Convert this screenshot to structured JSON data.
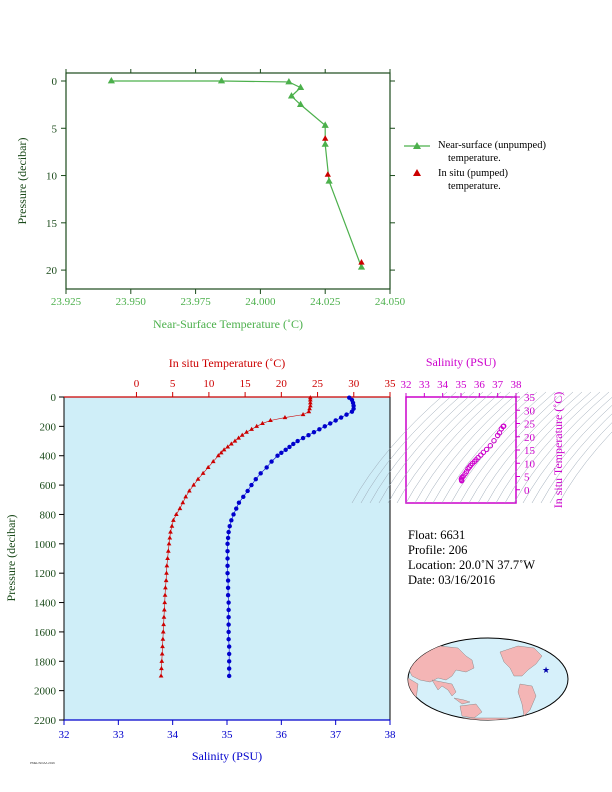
{
  "colors": {
    "green": "#4cb04c",
    "red": "#cc0000",
    "blue": "#0000cc",
    "magenta": "#cc00cc",
    "axis_dark": "#1a4a1a",
    "panel_bg": "#cfeef8",
    "land": "#f4b5b5",
    "ocean": "#d6f0fa"
  },
  "chart_data": [
    {
      "type": "line",
      "id": "near-surface",
      "xlabel": "Near-Surface Temperature (˚C)",
      "ylabel": "Pressure (decibar)",
      "xlim": [
        23.925,
        24.05
      ],
      "ylim": [
        0,
        22
      ],
      "y_inverted": true,
      "x_ticks": [
        "23.925",
        "23.950",
        "23.975",
        "24.000",
        "24.025",
        "24.050"
      ],
      "y_ticks": [
        "0",
        "5",
        "10",
        "15",
        "20"
      ],
      "series": [
        {
          "name": "Near-surface (unpumped) temperature.",
          "marker": "triangle",
          "color": "green",
          "x": [
            23.9425,
            23.985,
            24.011,
            24.0155,
            24.012,
            24.0155,
            24.025,
            24.025,
            24.0265,
            24.039
          ],
          "y": [
            0.0,
            0.0,
            0.1,
            0.7,
            1.6,
            2.5,
            4.7,
            6.7,
            10.6,
            19.7
          ]
        },
        {
          "name": "In situ (pumped) temperature.",
          "marker": "triangle",
          "color": "red",
          "x": [
            24.025,
            24.026,
            24.039
          ],
          "y": [
            6.1,
            9.9,
            19.2
          ]
        }
      ],
      "legend": [
        {
          "line1": "Near-surface (unpumped)",
          "line2": "temperature."
        },
        {
          "line1": "In situ (pumped)",
          "line2": "temperature."
        }
      ]
    },
    {
      "type": "line",
      "id": "profile",
      "top_xlabel": "In situ Temperature (˚C)",
      "bottom_xlabel": "Salinity (PSU)",
      "ylabel": "Pressure (decibar)",
      "temp_lim": [
        -10,
        35
      ],
      "sal_lim": [
        32,
        38
      ],
      "ylim": [
        0,
        2200
      ],
      "y_inverted": true,
      "temp_ticks": [
        "0",
        "5",
        "10",
        "15",
        "20",
        "25",
        "30",
        "35"
      ],
      "sal_ticks": [
        "32",
        "33",
        "34",
        "35",
        "36",
        "37",
        "38"
      ],
      "y_ticks": [
        "0",
        "200",
        "400",
        "600",
        "800",
        "1000",
        "1200",
        "1400",
        "1600",
        "1800",
        "2000",
        "2200"
      ],
      "temperature": {
        "color": "red",
        "p": [
          5,
          20,
          40,
          60,
          80,
          100,
          120,
          140,
          160,
          180,
          200,
          220,
          240,
          260,
          280,
          300,
          320,
          340,
          360,
          380,
          400,
          440,
          480,
          520,
          560,
          600,
          640,
          680,
          720,
          760,
          800,
          840,
          880,
          920,
          960,
          1000,
          1050,
          1100,
          1150,
          1200,
          1250,
          1300,
          1350,
          1400,
          1450,
          1500,
          1550,
          1600,
          1650,
          1700,
          1750,
          1800,
          1850,
          1900
        ],
        "v": [
          24.0,
          24.0,
          24.0,
          24.0,
          23.9,
          23.8,
          23.0,
          20.5,
          18.5,
          17.4,
          16.6,
          15.9,
          15.2,
          14.6,
          14.1,
          13.6,
          13.1,
          12.6,
          12.1,
          11.7,
          11.3,
          10.6,
          9.9,
          9.2,
          8.5,
          7.9,
          7.3,
          6.8,
          6.4,
          6.0,
          5.5,
          5.1,
          4.9,
          4.7,
          4.6,
          4.5,
          4.4,
          4.3,
          4.2,
          4.15,
          4.1,
          4.0,
          3.95,
          3.9,
          3.85,
          3.8,
          3.75,
          3.7,
          3.65,
          3.6,
          3.55,
          3.5,
          3.45,
          3.4
        ]
      },
      "salinity": {
        "color": "blue",
        "p": [
          5,
          20,
          40,
          60,
          80,
          100,
          120,
          140,
          160,
          180,
          200,
          220,
          240,
          260,
          280,
          300,
          320,
          340,
          360,
          380,
          400,
          440,
          480,
          520,
          560,
          600,
          640,
          680,
          720,
          760,
          800,
          840,
          880,
          920,
          960,
          1000,
          1050,
          1100,
          1150,
          1200,
          1250,
          1300,
          1350,
          1400,
          1450,
          1500,
          1550,
          1600,
          1650,
          1700,
          1750,
          1800,
          1850,
          1900
        ],
        "v": [
          37.25,
          37.3,
          37.32,
          37.33,
          37.33,
          37.3,
          37.2,
          37.1,
          37.0,
          36.9,
          36.8,
          36.7,
          36.6,
          36.5,
          36.4,
          36.3,
          36.22,
          36.15,
          36.08,
          36.0,
          35.93,
          35.82,
          35.73,
          35.62,
          35.53,
          35.45,
          35.38,
          35.3,
          35.22,
          35.17,
          35.12,
          35.08,
          35.05,
          35.03,
          35.02,
          35.01,
          35.01,
          35.01,
          35.01,
          35.01,
          35.02,
          35.02,
          35.02,
          35.03,
          35.03,
          35.03,
          35.03,
          35.03,
          35.03,
          35.04,
          35.04,
          35.04,
          35.04,
          35.04
        ]
      }
    },
    {
      "type": "scatter",
      "id": "ts-diagram",
      "top_xlabel": "Salinity (PSU)",
      "right_ylabel": "In situ Temperature (˚C)",
      "xlim": [
        32,
        38
      ],
      "ylim": [
        -5,
        35
      ],
      "x_ticks": [
        "32",
        "33",
        "34",
        "35",
        "36",
        "37",
        "38"
      ],
      "y_ticks": [
        "0",
        "5",
        "10",
        "15",
        "20",
        "25",
        "30",
        "35"
      ],
      "color": "magenta",
      "x": [
        35.04,
        35.03,
        35.02,
        35.05,
        35.12,
        35.22,
        35.3,
        35.38,
        35.45,
        35.53,
        35.62,
        35.73,
        35.82,
        35.93,
        36.08,
        36.22,
        36.4,
        36.6,
        36.8,
        37.0,
        37.1,
        37.2,
        37.3,
        37.33
      ],
      "y": [
        3.4,
        3.7,
        4.1,
        4.6,
        5.1,
        6.0,
        6.8,
        7.9,
        8.5,
        9.2,
        9.9,
        10.6,
        11.3,
        12.1,
        13.1,
        14.1,
        15.2,
        16.6,
        18.5,
        20.5,
        21.5,
        23.0,
        23.9,
        24.0
      ]
    }
  ],
  "float_info": {
    "float": "Float:  6631",
    "profile": "Profile:  206",
    "location": "Location:  20.0˚N  37.7˚W",
    "date": "Date:  03/16/2016"
  },
  "map": {
    "marker": "★"
  },
  "footnote": "PMEL/NOAA 2016"
}
